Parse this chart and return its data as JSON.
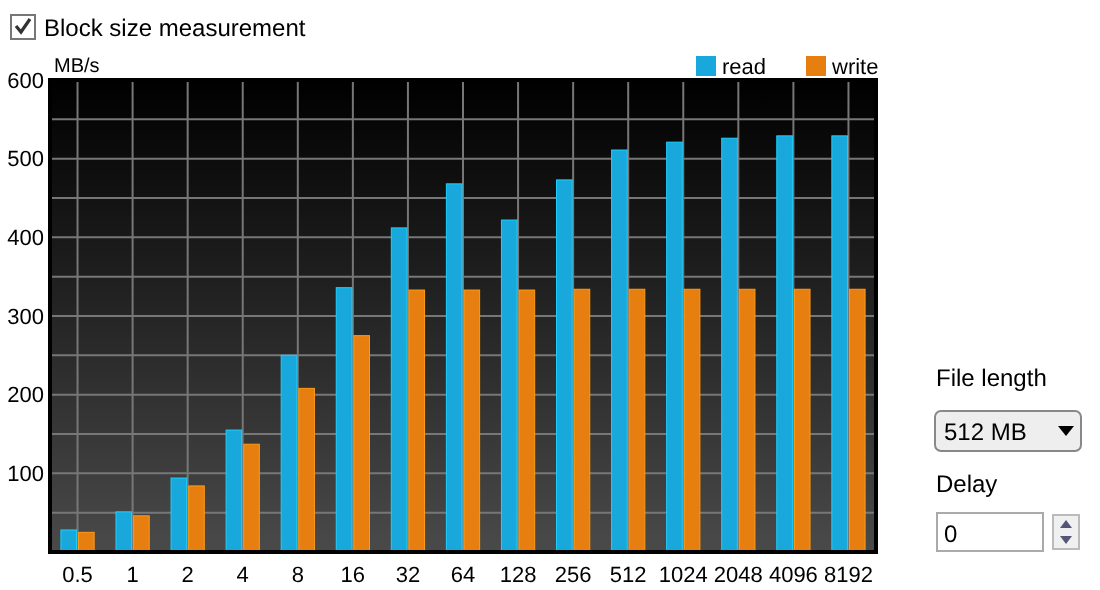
{
  "chart_data": {
    "type": "bar",
    "ylabel": "MB/s",
    "categories": [
      "0.5",
      "1",
      "2",
      "4",
      "8",
      "16",
      "32",
      "64",
      "128",
      "256",
      "512",
      "1024",
      "2048",
      "4096",
      "8192"
    ],
    "series": [
      {
        "name": "read",
        "color": "#18a8dc",
        "values": [
          28,
          51,
          94,
          155,
          250,
          336,
          412,
          468,
          422,
          473,
          511,
          521,
          526,
          529,
          529
        ]
      },
      {
        "name": "write",
        "color": "#e67e10",
        "values": [
          25,
          46,
          84,
          137,
          208,
          275,
          333,
          333,
          333,
          334,
          334,
          334,
          334,
          334,
          334
        ]
      }
    ],
    "ylim": [
      0,
      600
    ],
    "yticks": [
      {
        "value": 50,
        "label": null
      },
      100,
      {
        "value": 150,
        "label": null
      },
      200,
      {
        "value": 250,
        "label": null
      },
      300,
      {
        "value": 350,
        "label": null
      },
      400,
      {
        "value": 450,
        "label": null
      },
      500,
      {
        "value": 550,
        "label": null
      },
      600
    ],
    "grid": true,
    "legend": "top right",
    "annotations": [
      "Block size measurement",
      "File length",
      "512 MB",
      "Delay",
      "0"
    ]
  }
}
